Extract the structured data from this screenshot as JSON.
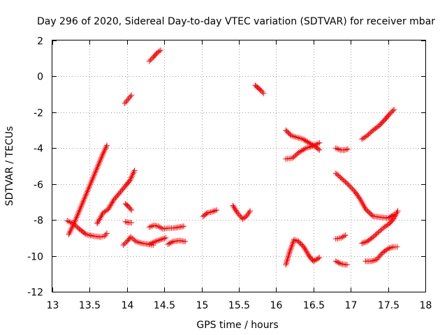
{
  "chart_data": {
    "type": "scatter",
    "title": "Day 296 of 2020, Sidereal Day-to-day VTEC variation (SDTVAR) for receiver mbar",
    "xlabel": "GPS time / hours",
    "ylabel": "SDTVAR / TECUs",
    "xlim": [
      13,
      18
    ],
    "ylim": [
      -12,
      2
    ],
    "grid": true,
    "marker": "+",
    "marker_color": "#ff0000",
    "x_ticks": [
      "13",
      "13.5",
      "14",
      "14.5",
      "15",
      "15.5",
      "16",
      "16.5",
      "17",
      "17.5",
      "18"
    ],
    "y_ticks": [
      "2",
      "0",
      "-2",
      "-4",
      "-6",
      "-8",
      "-10",
      "-12"
    ],
    "series": [
      {
        "name": "s1",
        "points": [
          [
            13.22,
            -8.8
          ],
          [
            13.3,
            -8.1
          ],
          [
            13.38,
            -7.3
          ],
          [
            13.46,
            -6.5
          ],
          [
            13.54,
            -5.7
          ],
          [
            13.62,
            -4.9
          ],
          [
            13.68,
            -4.3
          ],
          [
            13.73,
            -3.85
          ]
        ]
      },
      {
        "name": "s2",
        "points": [
          [
            13.2,
            -8.05
          ],
          [
            13.28,
            -8.2
          ],
          [
            13.36,
            -8.5
          ],
          [
            13.45,
            -8.8
          ],
          [
            13.55,
            -8.9
          ],
          [
            13.65,
            -8.95
          ],
          [
            13.7,
            -8.9
          ],
          [
            13.73,
            -8.75
          ]
        ]
      },
      {
        "name": "s3",
        "points": [
          [
            13.6,
            -8.2
          ],
          [
            13.68,
            -7.6
          ],
          [
            13.75,
            -7.4
          ],
          [
            13.82,
            -6.9
          ],
          [
            13.9,
            -6.5
          ],
          [
            13.98,
            -6.1
          ],
          [
            14.04,
            -5.8
          ],
          [
            14.1,
            -5.25
          ]
        ]
      },
      {
        "name": "s4",
        "points": [
          [
            13.97,
            -1.5
          ],
          [
            14.0,
            -1.35
          ],
          [
            14.03,
            -1.2
          ],
          [
            14.06,
            -1.05
          ]
        ]
      },
      {
        "name": "s5",
        "points": [
          [
            13.98,
            -7.1
          ],
          [
            14.02,
            -7.25
          ],
          [
            14.06,
            -7.45
          ]
        ]
      },
      {
        "name": "s6",
        "points": [
          [
            13.98,
            -8.1
          ],
          [
            14.02,
            -8.15
          ],
          [
            14.06,
            -8.15
          ]
        ]
      },
      {
        "name": "s7",
        "points": [
          [
            13.95,
            -9.4
          ],
          [
            14.0,
            -9.2
          ],
          [
            14.05,
            -8.95
          ],
          [
            14.12,
            -9.2
          ],
          [
            14.2,
            -9.3
          ],
          [
            14.28,
            -9.35
          ],
          [
            14.35,
            -9.4
          ]
        ]
      },
      {
        "name": "s8",
        "points": [
          [
            14.3,
            0.85
          ],
          [
            14.35,
            1.05
          ],
          [
            14.4,
            1.3
          ],
          [
            14.45,
            1.45
          ]
        ]
      },
      {
        "name": "s9",
        "points": [
          [
            14.3,
            -8.4
          ],
          [
            14.36,
            -8.3
          ],
          [
            14.42,
            -8.35
          ],
          [
            14.48,
            -8.5
          ],
          [
            14.55,
            -8.45
          ],
          [
            14.62,
            -8.45
          ],
          [
            14.7,
            -8.4
          ],
          [
            14.76,
            -8.35
          ]
        ]
      },
      {
        "name": "s10",
        "points": [
          [
            14.3,
            -9.35
          ],
          [
            14.38,
            -9.2
          ],
          [
            14.45,
            -9.1
          ],
          [
            14.52,
            -9.0
          ]
        ]
      },
      {
        "name": "s11",
        "points": [
          [
            14.55,
            -9.35
          ],
          [
            14.62,
            -9.2
          ],
          [
            14.7,
            -9.15
          ],
          [
            14.78,
            -9.2
          ]
        ]
      },
      {
        "name": "s12",
        "points": [
          [
            15.02,
            -7.8
          ],
          [
            15.08,
            -7.6
          ],
          [
            15.14,
            -7.55
          ],
          [
            15.2,
            -7.45
          ]
        ]
      },
      {
        "name": "s13",
        "points": [
          [
            15.42,
            -7.2
          ],
          [
            15.48,
            -7.6
          ],
          [
            15.55,
            -7.95
          ],
          [
            15.6,
            -7.8
          ],
          [
            15.65,
            -7.5
          ]
        ]
      },
      {
        "name": "s14",
        "points": [
          [
            15.72,
            -0.5
          ],
          [
            15.76,
            -0.65
          ],
          [
            15.8,
            -0.8
          ],
          [
            15.83,
            -0.95
          ]
        ]
      },
      {
        "name": "s15",
        "points": [
          [
            16.13,
            -3.0
          ],
          [
            16.2,
            -3.3
          ],
          [
            16.28,
            -3.4
          ],
          [
            16.36,
            -3.5
          ],
          [
            16.44,
            -3.7
          ],
          [
            16.52,
            -3.9
          ],
          [
            16.58,
            -4.1
          ]
        ]
      },
      {
        "name": "s16",
        "points": [
          [
            16.13,
            -4.6
          ],
          [
            16.22,
            -4.55
          ],
          [
            16.3,
            -4.25
          ],
          [
            16.4,
            -4.0
          ],
          [
            16.48,
            -3.9
          ],
          [
            16.58,
            -3.7
          ]
        ]
      },
      {
        "name": "s17",
        "points": [
          [
            16.13,
            -10.5
          ],
          [
            16.18,
            -9.8
          ],
          [
            16.24,
            -9.1
          ],
          [
            16.3,
            -9.2
          ],
          [
            16.37,
            -9.5
          ],
          [
            16.44,
            -10.0
          ],
          [
            16.5,
            -10.3
          ],
          [
            16.58,
            -10.1
          ]
        ]
      },
      {
        "name": "s18",
        "points": [
          [
            16.8,
            -4.0
          ],
          [
            16.86,
            -4.1
          ],
          [
            16.92,
            -4.1
          ],
          [
            16.96,
            -4.05
          ]
        ]
      },
      {
        "name": "s19",
        "points": [
          [
            16.8,
            -9.05
          ],
          [
            16.87,
            -9.0
          ],
          [
            16.93,
            -8.85
          ]
        ]
      },
      {
        "name": "s20",
        "points": [
          [
            16.8,
            -10.3
          ],
          [
            16.87,
            -10.45
          ],
          [
            16.95,
            -10.5
          ]
        ]
      },
      {
        "name": "s21",
        "points": [
          [
            16.8,
            -5.4
          ],
          [
            16.88,
            -5.7
          ],
          [
            16.96,
            -6.0
          ],
          [
            17.05,
            -6.4
          ],
          [
            17.12,
            -6.8
          ],
          [
            17.2,
            -7.4
          ],
          [
            17.3,
            -7.8
          ],
          [
            17.4,
            -7.85
          ],
          [
            17.5,
            -7.9
          ],
          [
            17.58,
            -7.7
          ]
        ]
      },
      {
        "name": "s22",
        "points": [
          [
            17.15,
            -3.5
          ],
          [
            17.22,
            -3.3
          ],
          [
            17.3,
            -3.0
          ],
          [
            17.38,
            -2.75
          ],
          [
            17.46,
            -2.4
          ],
          [
            17.52,
            -2.1
          ],
          [
            17.58,
            -1.85
          ]
        ]
      },
      {
        "name": "s23",
        "points": [
          [
            17.15,
            -9.3
          ],
          [
            17.22,
            -9.2
          ],
          [
            17.3,
            -8.95
          ],
          [
            17.38,
            -8.65
          ],
          [
            17.45,
            -8.4
          ],
          [
            17.52,
            -8.2
          ],
          [
            17.58,
            -7.9
          ],
          [
            17.63,
            -7.5
          ]
        ]
      },
      {
        "name": "s24",
        "points": [
          [
            17.2,
            -10.3
          ],
          [
            17.28,
            -10.3
          ],
          [
            17.35,
            -10.2
          ],
          [
            17.42,
            -9.85
          ],
          [
            17.5,
            -9.6
          ],
          [
            17.57,
            -9.5
          ],
          [
            17.62,
            -9.5
          ]
        ]
      }
    ]
  }
}
